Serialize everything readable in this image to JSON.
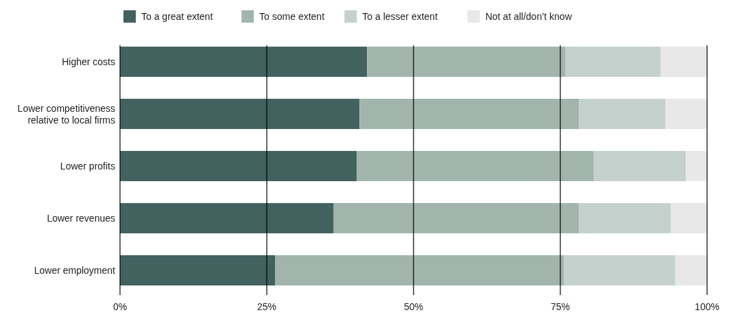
{
  "chart_data": {
    "type": "bar",
    "orientation": "horizontal",
    "stacked": true,
    "categories": [
      "Higher costs",
      "Lower competitiveness relative to local firms",
      "Lower profits",
      "Lower revenues",
      "Lower employment"
    ],
    "series": [
      {
        "name": "To a great extent",
        "color": "#426260",
        "values": [
          42.1,
          40.8,
          40.3,
          36.4,
          26.4
        ]
      },
      {
        "name": "To some extent",
        "color": "#a2b5ad",
        "values": [
          33.8,
          37.4,
          40.4,
          41.8,
          49.2
        ]
      },
      {
        "name": "To a lesser extent",
        "color": "#c5d1cc",
        "values": [
          16.2,
          14.7,
          15.7,
          15.6,
          19.0
        ]
      },
      {
        "name": "Not at all/don’t know",
        "color": "#e8e8e8",
        "values": [
          7.9,
          7.1,
          3.6,
          6.2,
          5.4
        ]
      }
    ],
    "xlim": [
      0,
      100
    ],
    "xticks": [
      {
        "value": 0,
        "label": "0%"
      },
      {
        "value": 25,
        "label": "25%"
      },
      {
        "value": 50,
        "label": "50%"
      },
      {
        "value": 75,
        "label": "75%"
      },
      {
        "value": 100,
        "label": "100%"
      }
    ],
    "grid": "x",
    "legend": "top"
  }
}
